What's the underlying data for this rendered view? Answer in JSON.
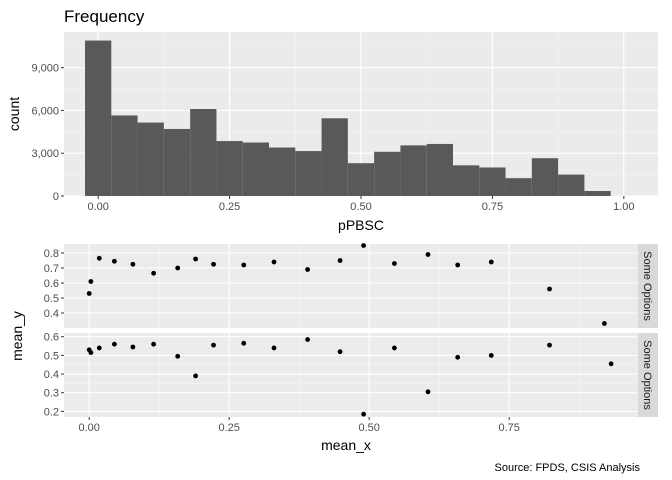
{
  "chart_data": [
    {
      "type": "bar",
      "title": "Frequency",
      "xlabel": "pPBSC",
      "ylabel": "count",
      "xlim": [
        -0.065,
        1.065
      ],
      "ylim": [
        0,
        11500
      ],
      "bin_width": 0.05,
      "bins": [
        {
          "start": -0.025,
          "end": 0.025,
          "count": 10900
        },
        {
          "start": 0.025,
          "end": 0.075,
          "count": 5650
        },
        {
          "start": 0.075,
          "end": 0.125,
          "count": 5150
        },
        {
          "start": 0.125,
          "end": 0.175,
          "count": 4700
        },
        {
          "start": 0.175,
          "end": 0.225,
          "count": 6100
        },
        {
          "start": 0.225,
          "end": 0.275,
          "count": 3850
        },
        {
          "start": 0.275,
          "end": 0.325,
          "count": 3750
        },
        {
          "start": 0.325,
          "end": 0.375,
          "count": 3400
        },
        {
          "start": 0.375,
          "end": 0.425,
          "count": 3150
        },
        {
          "start": 0.425,
          "end": 0.475,
          "count": 5450
        },
        {
          "start": 0.475,
          "end": 0.525,
          "count": 2300
        },
        {
          "start": 0.525,
          "end": 0.575,
          "count": 3100
        },
        {
          "start": 0.575,
          "end": 0.625,
          "count": 3550
        },
        {
          "start": 0.625,
          "end": 0.675,
          "count": 3650
        },
        {
          "start": 0.675,
          "end": 0.725,
          "count": 2150
        },
        {
          "start": 0.725,
          "end": 0.775,
          "count": 2000
        },
        {
          "start": 0.775,
          "end": 0.825,
          "count": 1250
        },
        {
          "start": 0.825,
          "end": 0.875,
          "count": 2650
        },
        {
          "start": 0.875,
          "end": 0.925,
          "count": 1500
        },
        {
          "start": 0.925,
          "end": 0.975,
          "count": 350
        }
      ],
      "x_ticks": [
        {
          "value": 0,
          "label": "0.00"
        },
        {
          "value": 0.25,
          "label": "0.25"
        },
        {
          "value": 0.5,
          "label": "0.50"
        },
        {
          "value": 0.75,
          "label": "0.75"
        },
        {
          "value": 1,
          "label": "1.00"
        }
      ],
      "y_ticks": [
        {
          "value": 0,
          "label": "0"
        },
        {
          "value": 3000,
          "label": "3,000"
        },
        {
          "value": 6000,
          "label": "6,000"
        },
        {
          "value": 9000,
          "label": "9,000"
        }
      ],
      "bar_color": "#595959",
      "panel_bg": "#ebebeb",
      "grid": true
    },
    {
      "type": "scatter",
      "xlabel": "mean_x",
      "ylabel": "mean_y",
      "xlim": [
        -0.045,
        0.98
      ],
      "x_ticks": [
        {
          "value": 0,
          "label": "0.00"
        },
        {
          "value": 0.25,
          "label": "0.25"
        },
        {
          "value": 0.5,
          "label": "0.50"
        },
        {
          "value": 0.75,
          "label": "0.75"
        }
      ],
      "point_color": "#000000",
      "facets": [
        {
          "strip_label": "Some Options",
          "ylim": [
            0.3,
            0.86
          ],
          "y_ticks": [
            {
              "value": 0.4,
              "label": "0.4"
            },
            {
              "value": 0.5,
              "label": "0.5"
            },
            {
              "value": 0.6,
              "label": "0.6"
            },
            {
              "value": 0.7,
              "label": "0.7"
            },
            {
              "value": 0.8,
              "label": "0.8"
            }
          ],
          "points": [
            {
              "x": 0.0,
              "y": 0.53
            },
            {
              "x": 0.003,
              "y": 0.61
            },
            {
              "x": 0.018,
              "y": 0.765
            },
            {
              "x": 0.045,
              "y": 0.745
            },
            {
              "x": 0.078,
              "y": 0.725
            },
            {
              "x": 0.115,
              "y": 0.665
            },
            {
              "x": 0.158,
              "y": 0.7
            },
            {
              "x": 0.19,
              "y": 0.76
            },
            {
              "x": 0.222,
              "y": 0.725
            },
            {
              "x": 0.276,
              "y": 0.72
            },
            {
              "x": 0.33,
              "y": 0.74
            },
            {
              "x": 0.39,
              "y": 0.69
            },
            {
              "x": 0.448,
              "y": 0.75
            },
            {
              "x": 0.49,
              "y": 0.85
            },
            {
              "x": 0.545,
              "y": 0.73
            },
            {
              "x": 0.605,
              "y": 0.79
            },
            {
              "x": 0.658,
              "y": 0.72
            },
            {
              "x": 0.718,
              "y": 0.74
            },
            {
              "x": 0.822,
              "y": 0.56
            },
            {
              "x": 0.92,
              "y": 0.33
            }
          ]
        },
        {
          "strip_label": "Some Options",
          "ylim": [
            0.17,
            0.62
          ],
          "y_ticks": [
            {
              "value": 0.2,
              "label": "0.2"
            },
            {
              "value": 0.3,
              "label": "0.3"
            },
            {
              "value": 0.4,
              "label": "0.4"
            },
            {
              "value": 0.5,
              "label": "0.5"
            },
            {
              "value": 0.6,
              "label": "0.6"
            }
          ],
          "points": [
            {
              "x": 0.0,
              "y": 0.53
            },
            {
              "x": 0.003,
              "y": 0.515
            },
            {
              "x": 0.018,
              "y": 0.54
            },
            {
              "x": 0.045,
              "y": 0.56
            },
            {
              "x": 0.078,
              "y": 0.545
            },
            {
              "x": 0.115,
              "y": 0.56
            },
            {
              "x": 0.158,
              "y": 0.495
            },
            {
              "x": 0.19,
              "y": 0.39
            },
            {
              "x": 0.222,
              "y": 0.555
            },
            {
              "x": 0.276,
              "y": 0.565
            },
            {
              "x": 0.33,
              "y": 0.54
            },
            {
              "x": 0.39,
              "y": 0.585
            },
            {
              "x": 0.448,
              "y": 0.52
            },
            {
              "x": 0.49,
              "y": 0.185
            },
            {
              "x": 0.545,
              "y": 0.54
            },
            {
              "x": 0.605,
              "y": 0.305
            },
            {
              "x": 0.658,
              "y": 0.49
            },
            {
              "x": 0.718,
              "y": 0.5
            },
            {
              "x": 0.822,
              "y": 0.555
            },
            {
              "x": 0.932,
              "y": 0.455
            }
          ]
        }
      ]
    }
  ],
  "caption": "Source: FPDS, CSIS Analysis"
}
